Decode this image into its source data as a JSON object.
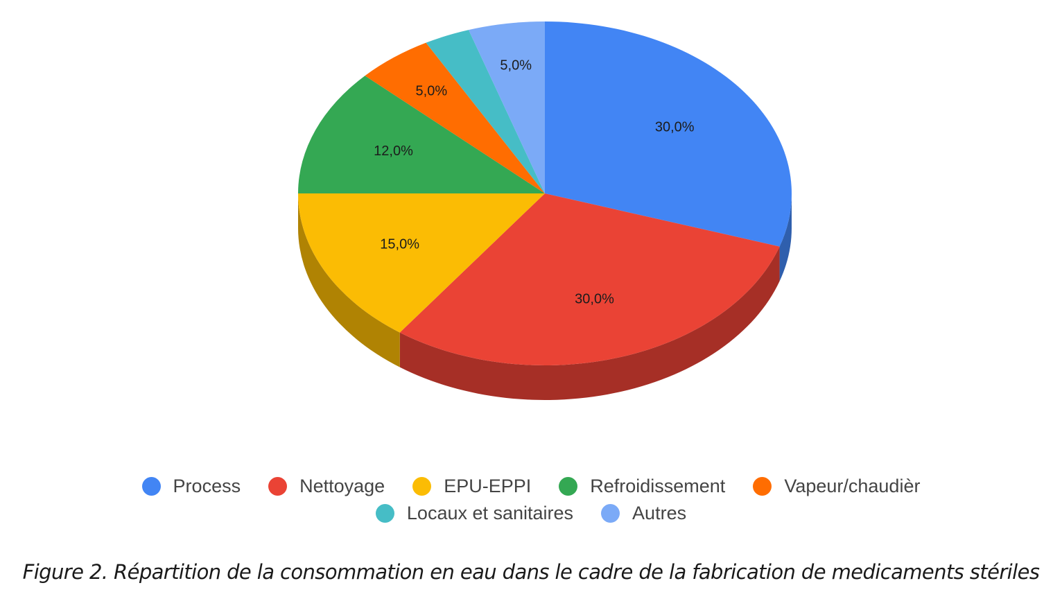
{
  "chart_data": {
    "type": "pie",
    "style": "3d",
    "categories": [
      "Process",
      "Nettoyage",
      "EPU-EPPI",
      "Refroidissement",
      "Vapeur/chaudièr",
      "Locaux et sanitaires",
      "Autres"
    ],
    "values": [
      30.0,
      30.0,
      15.0,
      12.0,
      5.0,
      3.0,
      5.0
    ],
    "value_labels": [
      "30,0%",
      "30,0%",
      "15,0%",
      "12,0%",
      "5,0%",
      "",
      "5,0%"
    ],
    "colors": [
      "#4285f4",
      "#ea4335",
      "#fbbc04",
      "#34a853",
      "#ff6d01",
      "#46bdc6",
      "#7baaf7"
    ],
    "side_colors": [
      "#2f5fad",
      "#a62f26",
      "#b08303",
      "#247641",
      "#b34d01",
      "#31858b",
      "#5677ad"
    ],
    "legend": {
      "position": "bottom",
      "rows": [
        [
          "Process",
          "Nettoyage",
          "EPU-EPPI",
          "Refroidissement",
          "Vapeur/chaudièr"
        ],
        [
          "Locaux et sanitaires",
          "Autres"
        ]
      ]
    }
  },
  "caption": "Figure 2. Répartition de la consommation en eau dans le cadre  de la fabrication de medicaments stériles"
}
